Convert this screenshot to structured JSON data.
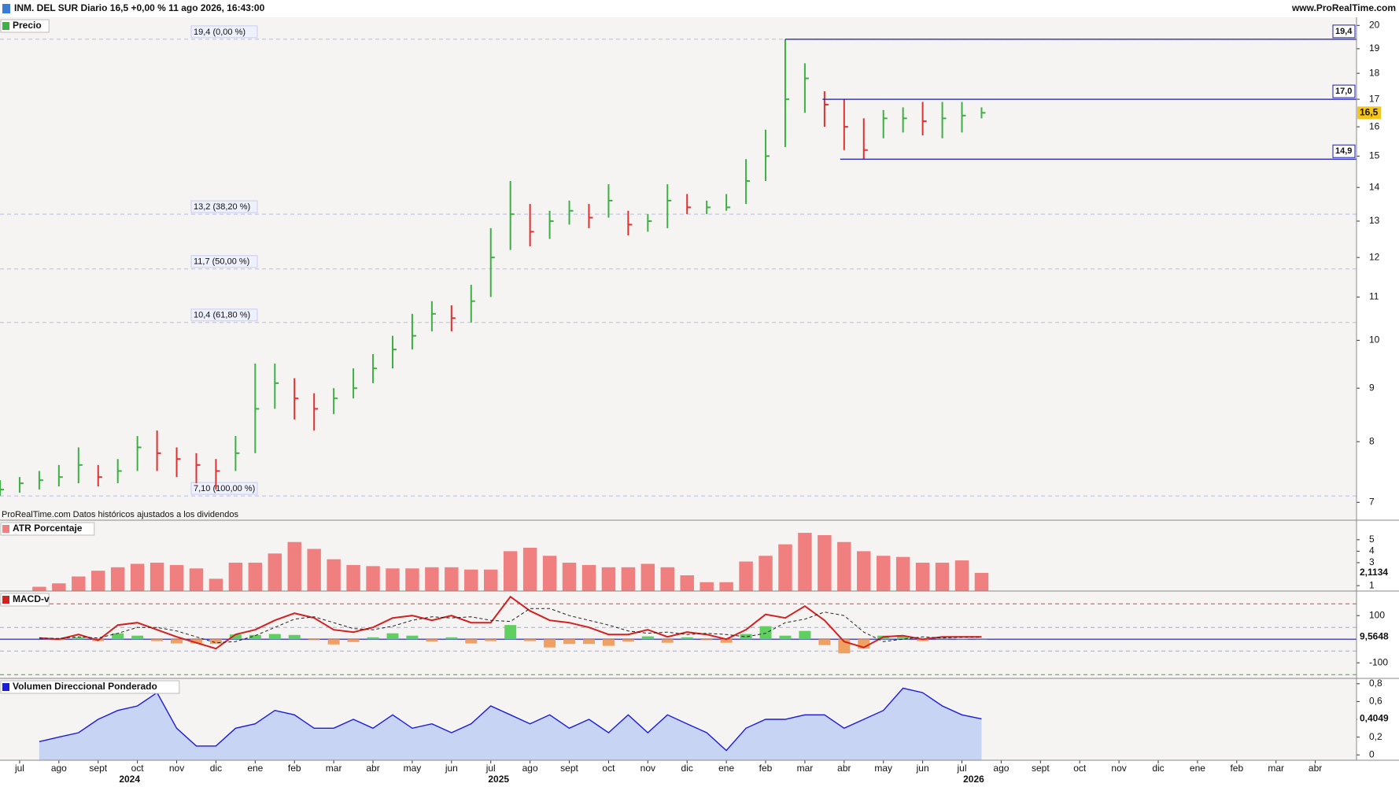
{
  "header": {
    "title": "INM. DEL SUR Diario 16,5 +0,00 % 11 ago 2026, 16:43:00",
    "site": "www.ProRealTime.com",
    "note": "ProRealTime.com Datos históricos ajustados a los dividendos"
  },
  "chart_data": [
    {
      "type": "ohlc",
      "title": "Precio",
      "log_scale": true,
      "up_color": "#3cb043",
      "down_color": "#e03030",
      "x": [
        -0.5,
        0,
        0.5,
        1,
        1.5,
        2,
        2.5,
        3,
        3.5,
        4,
        4.5,
        5,
        5.5,
        6,
        6.5,
        7,
        7.5,
        8,
        8.5,
        9,
        9.5,
        10,
        10.5,
        11,
        11.5,
        12,
        12.5,
        13,
        13.5,
        14,
        14.5,
        15,
        15.5,
        16,
        16.5,
        17,
        17.5,
        18,
        18.5,
        19,
        19.5,
        20,
        20.5,
        21,
        21.5,
        22,
        22.5,
        23,
        23.5,
        24,
        24.5
      ],
      "high": [
        7.35,
        7.4,
        7.5,
        7.6,
        7.9,
        7.6,
        7.7,
        8.1,
        8.2,
        7.9,
        7.8,
        7.7,
        8.1,
        9.5,
        9.5,
        9.2,
        8.9,
        9.0,
        9.4,
        9.7,
        10.1,
        10.6,
        10.9,
        10.8,
        11.3,
        12.8,
        14.2,
        13.5,
        13.3,
        13.6,
        13.5,
        14.1,
        13.3,
        13.2,
        14.1,
        13.8,
        13.6,
        13.8,
        14.9,
        15.9,
        19.4,
        18.4,
        17.3,
        17.0,
        16.3,
        16.6,
        16.7,
        16.9,
        16.9,
        16.9,
        16.7
      ],
      "low": [
        7.1,
        7.15,
        7.2,
        7.25,
        7.3,
        7.25,
        7.3,
        7.5,
        7.5,
        7.4,
        7.3,
        7.2,
        7.5,
        7.8,
        8.6,
        8.4,
        8.2,
        8.5,
        8.8,
        9.1,
        9.4,
        9.8,
        10.2,
        10.2,
        10.4,
        11.0,
        12.2,
        12.3,
        12.5,
        12.9,
        12.8,
        13.1,
        12.6,
        12.7,
        12.8,
        13.2,
        13.2,
        13.3,
        13.5,
        14.2,
        15.3,
        16.5,
        16.0,
        15.2,
        14.9,
        15.6,
        15.8,
        15.7,
        15.6,
        15.8,
        16.3
      ],
      "close": [
        7.2,
        7.3,
        7.35,
        7.4,
        7.6,
        7.4,
        7.5,
        7.9,
        7.8,
        7.7,
        7.6,
        7.5,
        7.8,
        8.6,
        9.1,
        8.8,
        8.6,
        8.8,
        9.0,
        9.4,
        9.8,
        10.1,
        10.6,
        10.5,
        10.9,
        12.0,
        13.2,
        12.7,
        13.0,
        13.3,
        13.1,
        13.6,
        12.9,
        13.0,
        13.6,
        13.4,
        13.4,
        13.4,
        14.2,
        15.0,
        17.0,
        17.8,
        16.8,
        16.0,
        15.2,
        16.3,
        16.3,
        16.2,
        16.3,
        16.4,
        16.5
      ],
      "fib_levels": [
        {
          "value": 19.4,
          "label": "19,4 (0,00 %)"
        },
        {
          "value": 13.2,
          "label": "13,2 (38,20 %)"
        },
        {
          "value": 11.7,
          "label": "11,7 (50,00 %)"
        },
        {
          "value": 10.4,
          "label": "10,4 (61,80 %)"
        },
        {
          "value": 7.1,
          "label": "7,10 (100,00 %)"
        }
      ],
      "levels": [
        {
          "value": 19.4,
          "label": "19,4",
          "start": 19.5
        },
        {
          "value": 17.0,
          "label": "17,0",
          "start": 20.45
        },
        {
          "value": 14.9,
          "label": "14,9",
          "start": 20.9
        }
      ],
      "current": {
        "value": 16.5,
        "label": "16,5"
      },
      "xlim": [
        -0.5,
        34.05
      ],
      "ylim": [
        6.73,
        20.36
      ],
      "yticks": [
        7,
        8,
        9,
        10,
        11,
        12,
        13,
        14,
        15,
        16,
        17,
        18,
        19,
        20
      ]
    },
    {
      "type": "bar",
      "title": "ATR Porcentaje",
      "color": "#f08080",
      "x": [
        0.5,
        1,
        1.5,
        2,
        2.5,
        3,
        3.5,
        4,
        4.5,
        5,
        5.5,
        6,
        6.5,
        7,
        7.5,
        8,
        8.5,
        9,
        9.5,
        10,
        10.5,
        11,
        11.5,
        12,
        12.5,
        13,
        13.5,
        14,
        14.5,
        15,
        15.5,
        16,
        16.5,
        17,
        17.5,
        18,
        18.5,
        19,
        19.5,
        20,
        20.5,
        21,
        21.5,
        22,
        22.5,
        23,
        23.5,
        24,
        24.5
      ],
      "values": [
        0.9,
        1.2,
        1.8,
        2.3,
        2.6,
        2.9,
        3.0,
        2.8,
        2.5,
        1.6,
        3.0,
        3.0,
        3.8,
        4.8,
        4.2,
        3.3,
        2.8,
        2.7,
        2.5,
        2.5,
        2.6,
        2.6,
        2.4,
        2.4,
        4.0,
        4.3,
        3.6,
        3.0,
        2.8,
        2.6,
        2.6,
        2.9,
        2.6,
        1.9,
        1.3,
        1.3,
        3.1,
        3.6,
        4.6,
        5.6,
        5.4,
        4.8,
        4.0,
        3.6,
        3.5,
        3.0,
        3.0,
        3.2,
        2.1134
      ],
      "current": {
        "value": 2.1134,
        "label": "2,1134"
      },
      "xlim": [
        -0.5,
        34.05
      ],
      "ylim": [
        0.53,
        6.7
      ],
      "yticks": [
        1,
        3,
        4,
        5
      ]
    },
    {
      "type": "line",
      "title": "MACD-v",
      "x": [
        0.5,
        1,
        1.5,
        2,
        2.5,
        3,
        3.5,
        4,
        4.5,
        5,
        5.5,
        6,
        6.5,
        7,
        7.5,
        8,
        8.5,
        9,
        9.5,
        10,
        10.5,
        11,
        11.5,
        12,
        12.5,
        13,
        13.5,
        14,
        14.5,
        15,
        15.5,
        16,
        16.5,
        17,
        17.5,
        18,
        18.5,
        19,
        19.5,
        20,
        20.5,
        21,
        21.5,
        22,
        22.5,
        23,
        23.5,
        24,
        24.5
      ],
      "series": [
        {
          "color": "#d42020",
          "values": [
            5,
            0,
            20,
            -5,
            60,
            70,
            40,
            10,
            -15,
            -40,
            20,
            40,
            80,
            110,
            90,
            40,
            30,
            50,
            90,
            100,
            80,
            100,
            70,
            70,
            180,
            120,
            80,
            70,
            50,
            20,
            20,
            40,
            10,
            30,
            20,
            0,
            40,
            105,
            90,
            140,
            80,
            -10,
            -35,
            10,
            15,
            0,
            10,
            10,
            9.5648
          ]
        },
        {
          "color": "#222222",
          "dashed": true,
          "values": [
            5,
            3,
            10,
            5,
            25,
            50,
            50,
            35,
            10,
            -15,
            -10,
            15,
            50,
            85,
            95,
            70,
            45,
            40,
            55,
            80,
            95,
            90,
            95,
            80,
            75,
            130,
            130,
            100,
            80,
            60,
            35,
            25,
            30,
            20,
            25,
            20,
            10,
            25,
            70,
            85,
            115,
            100,
            30,
            -10,
            0,
            10,
            5,
            8,
            9
          ]
        }
      ],
      "histogram": [
        0,
        -3,
        8,
        -8,
        25,
        15,
        -8,
        -18,
        -18,
        -20,
        20,
        18,
        22,
        18,
        -4,
        -22,
        -12,
        8,
        25,
        15,
        -10,
        8,
        -18,
        -8,
        60,
        -8,
        -35,
        -20,
        -20,
        -28,
        -10,
        12,
        -15,
        8,
        -4,
        -15,
        22,
        55,
        15,
        35,
        -25,
        -60,
        -40,
        15,
        12,
        -8,
        4,
        2,
        0.6
      ],
      "hist_up_color": "#5fcf5f",
      "hist_down_color": "#f0a060",
      "levels": [
        {
          "value": 150,
          "color": "#e04040"
        },
        {
          "value": 50,
          "color": "#9aa8f0"
        },
        {
          "value": -50,
          "color": "#9aa8f0"
        },
        {
          "value": -150,
          "color": "#40a040"
        }
      ],
      "current": {
        "value": 9.5648,
        "label": "9,5648"
      },
      "xlim": [
        -0.5,
        34.05
      ],
      "ylim": [
        -166,
        204
      ],
      "yticks": [
        100,
        -100
      ]
    },
    {
      "type": "area",
      "title": "Volumen Direccional Ponderado",
      "color": "#1a1ae0",
      "fill": "#c8d4f4",
      "x": [
        0.5,
        1,
        1.5,
        2,
        2.5,
        3,
        3.5,
        4,
        4.5,
        5,
        5.5,
        6,
        6.5,
        7,
        7.5,
        8,
        8.5,
        9,
        9.5,
        10,
        10.5,
        11,
        11.5,
        12,
        12.5,
        13,
        13.5,
        14,
        14.5,
        15,
        15.5,
        16,
        16.5,
        17,
        17.5,
        18,
        18.5,
        19,
        19.5,
        20,
        20.5,
        21,
        21.5,
        22,
        22.5,
        23,
        23.5,
        24,
        24.5
      ],
      "values": [
        0.15,
        0.2,
        0.25,
        0.4,
        0.5,
        0.55,
        0.7,
        0.3,
        0.1,
        0.1,
        0.3,
        0.35,
        0.5,
        0.45,
        0.3,
        0.3,
        0.4,
        0.3,
        0.45,
        0.3,
        0.35,
        0.25,
        0.35,
        0.55,
        0.45,
        0.35,
        0.45,
        0.3,
        0.4,
        0.25,
        0.45,
        0.25,
        0.45,
        0.35,
        0.25,
        0.05,
        0.3,
        0.4,
        0.4,
        0.45,
        0.45,
        0.3,
        0.4,
        0.5,
        0.75,
        0.7,
        0.55,
        0.45,
        0.4049
      ],
      "current": {
        "value": 0.4049,
        "label": "0,4049"
      },
      "xlim": [
        -0.5,
        34.05
      ],
      "ylim": [
        -0.06,
        0.86
      ],
      "yticks": [
        {
          "value": 0.8,
          "label": "0,8"
        },
        {
          "value": 0.6,
          "label": "0,6"
        },
        {
          "value": 0.4,
          "label": "0,4"
        },
        {
          "value": 0.2,
          "label": "0,2"
        },
        0
      ],
      "xticks": [
        {
          "value": 0,
          "label": "jul"
        },
        {
          "value": 1,
          "label": "ago"
        },
        {
          "value": 2,
          "label": "sept"
        },
        {
          "value": 3,
          "label": "oct"
        },
        {
          "value": 4,
          "label": "nov"
        },
        {
          "value": 5,
          "label": "dic"
        },
        {
          "value": 6,
          "label": "ene"
        },
        {
          "value": 7,
          "label": "feb"
        },
        {
          "value": 8,
          "label": "mar"
        },
        {
          "value": 9,
          "label": "abr"
        },
        {
          "value": 10,
          "label": "may"
        },
        {
          "value": 11,
          "label": "jun"
        },
        {
          "value": 12,
          "label": "jul"
        },
        {
          "value": 13,
          "label": "ago"
        },
        {
          "value": 14,
          "label": "sept"
        },
        {
          "value": 15,
          "label": "oct"
        },
        {
          "value": 16,
          "label": "nov"
        },
        {
          "value": 17,
          "label": "dic"
        },
        {
          "value": 18,
          "label": "ene"
        },
        {
          "value": 19,
          "label": "feb"
        },
        {
          "value": 20,
          "label": "mar"
        },
        {
          "value": 21,
          "label": "abr"
        },
        {
          "value": 22,
          "label": "may"
        },
        {
          "value": 23,
          "label": "jun"
        },
        {
          "value": 24,
          "label": "jul"
        },
        {
          "value": 25,
          "label": "ago"
        },
        {
          "value": 26,
          "label": "sept"
        },
        {
          "value": 27,
          "label": "oct"
        },
        {
          "value": 28,
          "label": "nov"
        },
        {
          "value": 29,
          "label": "dic"
        },
        {
          "value": 30,
          "label": "ene"
        },
        {
          "value": 31,
          "label": "feb"
        },
        {
          "value": 32,
          "label": "mar"
        },
        {
          "value": 33,
          "label": "abr"
        }
      ],
      "year_labels": [
        {
          "value": 2.8,
          "label": "2024"
        },
        {
          "value": 12.2,
          "label": "2025"
        },
        {
          "value": 24.3,
          "label": "2026"
        }
      ]
    }
  ]
}
